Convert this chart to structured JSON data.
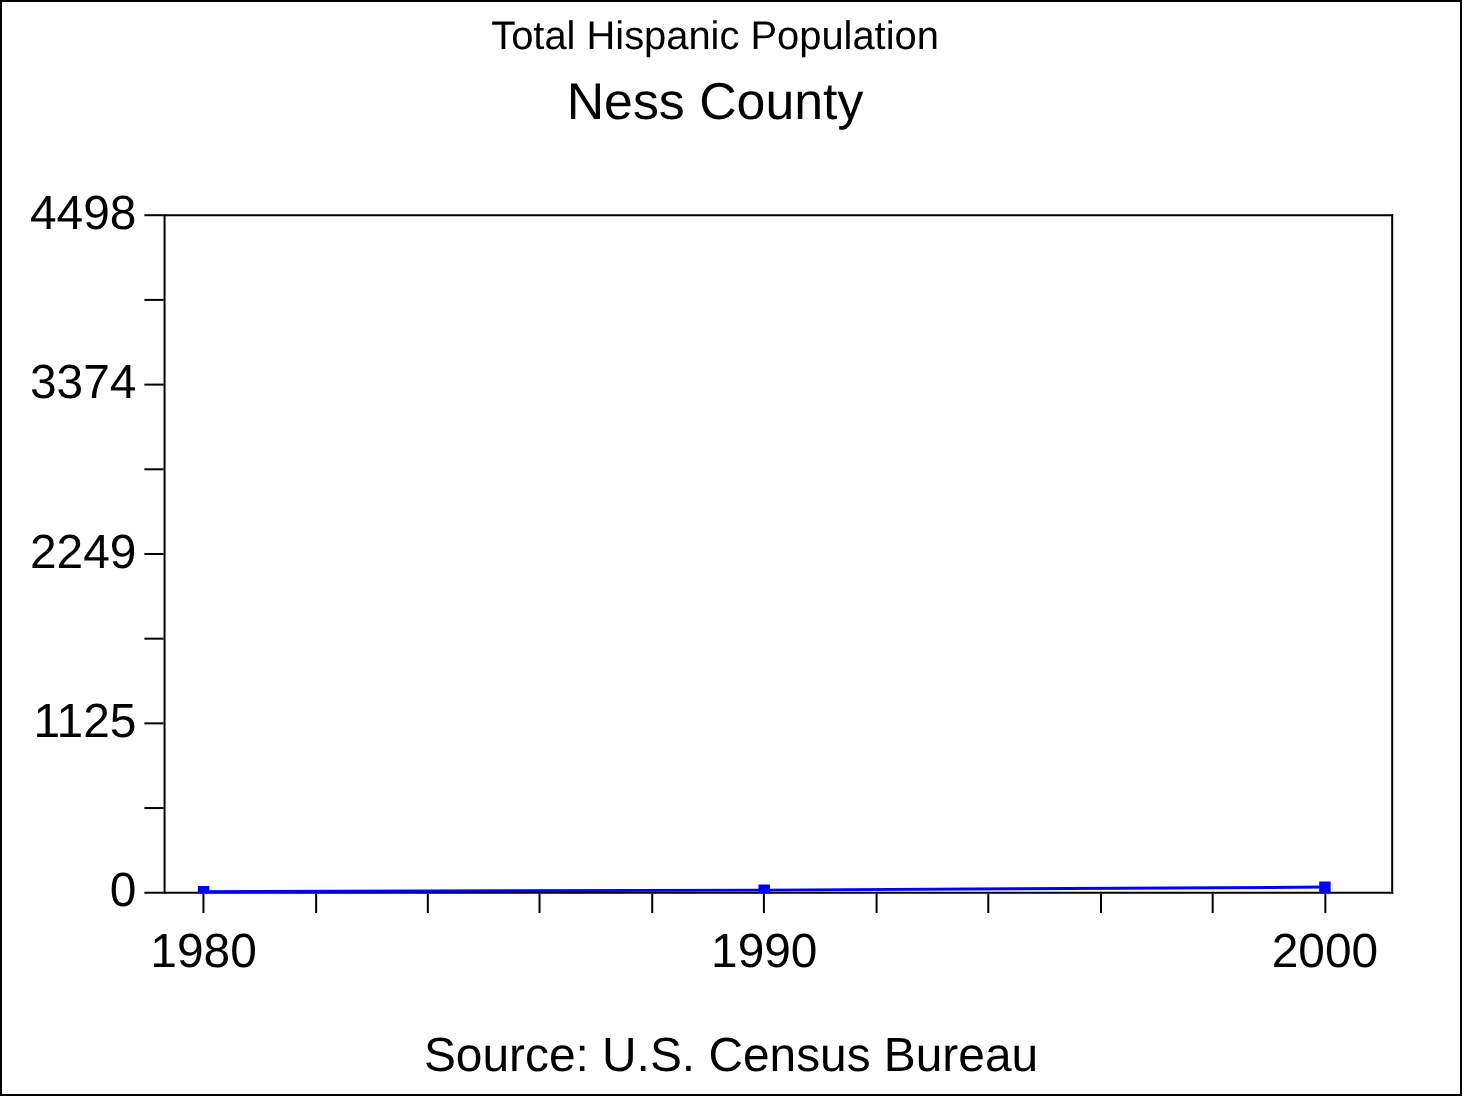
{
  "chart_data": {
    "type": "line",
    "title": "Total Hispanic Population",
    "subtitle": "Ness County",
    "annotations": [
      "Source: U.S. Census Bureau"
    ],
    "x": [
      1980,
      1990,
      2000
    ],
    "series": [
      {
        "color": "#0000ff",
        "values": [
          10,
          20,
          40
        ]
      }
    ],
    "xlim": [
      1979.3,
      2001.2
    ],
    "xticks": [
      1980,
      {
        "value": 1982,
        "label": null
      },
      {
        "value": 1984,
        "label": null
      },
      {
        "value": 1986,
        "label": null
      },
      {
        "value": 1988,
        "label": null
      },
      1990,
      {
        "value": 1992,
        "label": null
      },
      {
        "value": 1994,
        "label": null
      },
      {
        "value": 1996,
        "label": null
      },
      {
        "value": 1998,
        "label": null
      },
      2000
    ],
    "ylim": [
      0,
      4498
    ],
    "yticks": [
      0,
      {
        "value": 562,
        "label": null
      },
      1125,
      {
        "value": 1687,
        "label": null
      },
      2249,
      {
        "value": 2811,
        "label": null
      },
      3374,
      {
        "value": 3936,
        "label": null
      },
      4498
    ],
    "grid": false,
    "legend": false,
    "marker": "square",
    "line_style": "solid"
  }
}
